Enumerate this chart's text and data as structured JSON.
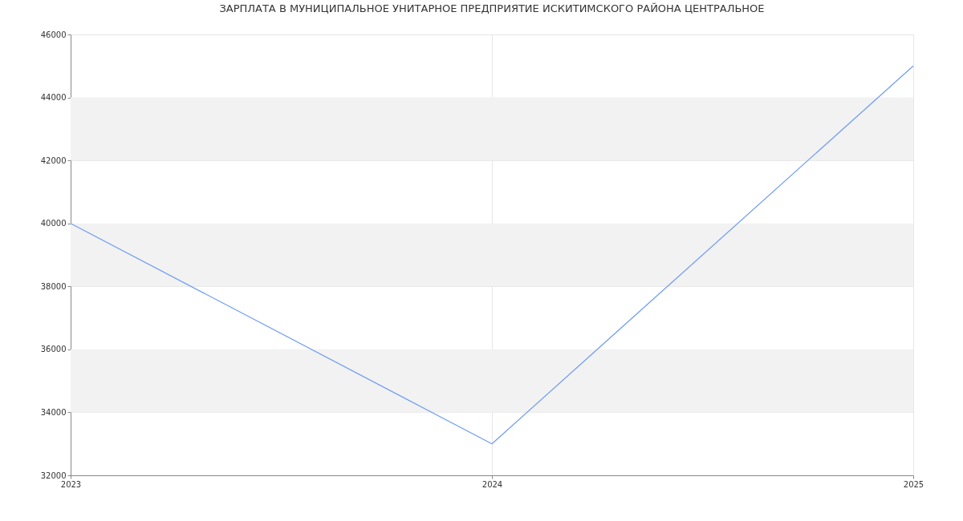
{
  "chart_data": {
    "type": "line",
    "title": "ЗАРПЛАТА В МУНИЦИПАЛЬНОЕ УНИТАРНОЕ ПРЕДПРИЯТИЕ ИСКИТИМСКОГО РАЙОНА ЦЕНТРАЛЬНОЕ",
    "categories": [
      "2023",
      "2024",
      "2025"
    ],
    "series": [
      {
        "color": "#6f9cf4",
        "values": [
          40000,
          33000,
          45000
        ]
      }
    ],
    "ylim": [
      32000,
      46000
    ],
    "yticks": [
      32000,
      34000,
      36000,
      38000,
      40000,
      42000,
      44000,
      46000
    ],
    "bands": [
      {
        "axis": "y",
        "from": 34000,
        "to": 36000,
        "color": "#f2f2f2"
      },
      {
        "axis": "y",
        "from": 38000,
        "to": 40000,
        "color": "#f2f2f2"
      },
      {
        "axis": "y",
        "from": 42000,
        "to": 44000,
        "color": "#f2f2f2"
      }
    ],
    "grid": true,
    "marker": "none",
    "line_style": "solid"
  }
}
